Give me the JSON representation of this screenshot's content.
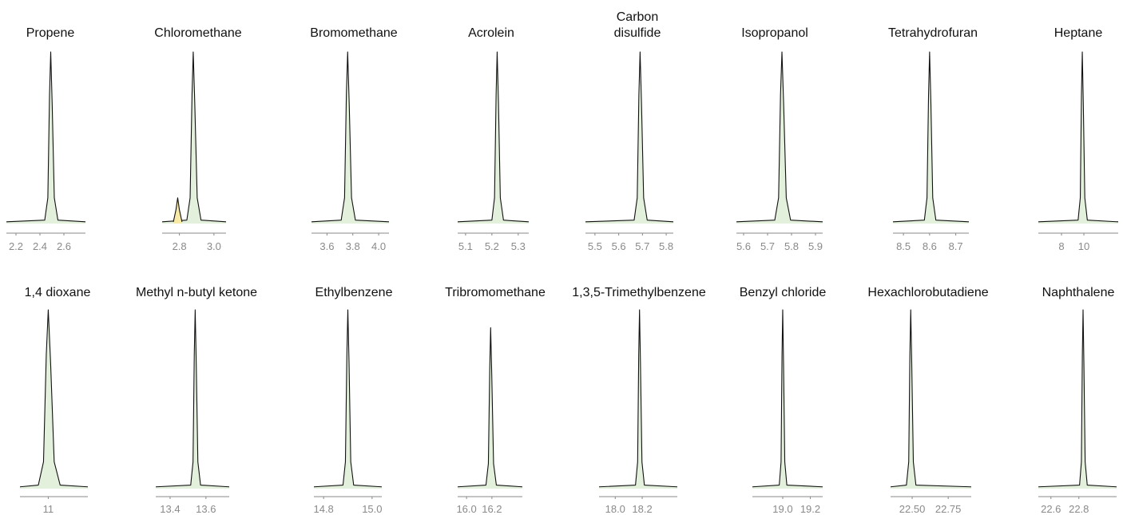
{
  "chart_data": [
    {
      "type": "area",
      "title": "Propene",
      "color": "#e3f1dc",
      "xlim": [
        2.12,
        2.78
      ],
      "xticks": [
        2.2,
        2.4,
        2.6
      ],
      "ylim": [
        0,
        100
      ],
      "x": [
        2.12,
        2.44,
        2.466,
        2.48,
        2.49,
        2.502,
        2.52,
        2.55,
        2.78
      ],
      "values": [
        1,
        2,
        15,
        75,
        100,
        70,
        15,
        2,
        1
      ]
    },
    {
      "type": "area",
      "title": "Chloromethane",
      "color": "#e3f1dc",
      "xlim": [
        2.7,
        3.07
      ],
      "xticks": [
        2.8,
        {
          "value": 3.0,
          "label": "3.0"
        }
      ],
      "ylim": [
        0,
        100
      ],
      "x": [
        2.7,
        2.843,
        2.862,
        2.873,
        2.88,
        2.889,
        2.903,
        2.925,
        3.07
      ],
      "values": [
        1,
        2,
        15,
        75,
        100,
        70,
        15,
        2,
        1
      ],
      "extra": {
        "color": "#f6eaa6",
        "x": [
          2.765,
          2.78,
          2.79,
          2.8,
          2.815
        ],
        "values": [
          1,
          8,
          15,
          8,
          1
        ]
      }
    },
    {
      "type": "area",
      "title": "Bromomethane",
      "color": "#e3f1dc",
      "xlim": [
        3.48,
        4.08
      ],
      "xticks": [
        3.6,
        3.8,
        {
          "value": 4.0,
          "label": "4.0"
        }
      ],
      "ylim": [
        0,
        100
      ],
      "x": [
        3.48,
        3.71,
        3.736,
        3.75,
        3.76,
        3.772,
        3.79,
        3.82,
        4.08
      ],
      "values": [
        1,
        2,
        15,
        75,
        100,
        70,
        15,
        2,
        1
      ]
    },
    {
      "type": "area",
      "title": "Acrolein",
      "color": "#e3f1dc",
      "xlim": [
        5.07,
        5.34
      ],
      "xticks": [
        5.1,
        5.2,
        5.3
      ],
      "ylim": [
        0,
        100
      ],
      "x": [
        5.07,
        5.2,
        5.21,
        5.216,
        5.22,
        5.225,
        5.232,
        5.244,
        5.34
      ],
      "values": [
        1,
        2,
        15,
        75,
        100,
        70,
        15,
        2,
        1
      ]
    },
    {
      "type": "area",
      "title": "Carbon disulfide",
      "color": "#e3f1dc",
      "xlim": [
        5.46,
        5.83
      ],
      "xticks": [
        5.5,
        5.6,
        5.7,
        5.8
      ],
      "ylim": [
        0,
        100
      ],
      "x": [
        5.46,
        5.665,
        5.678,
        5.685,
        5.69,
        5.696,
        5.705,
        5.72,
        5.83
      ],
      "values": [
        1,
        2,
        15,
        75,
        100,
        70,
        15,
        2,
        1
      ]
    },
    {
      "type": "area",
      "title": "Isopropanol",
      "color": "#e3f1dc",
      "xlim": [
        5.57,
        5.93
      ],
      "xticks": [
        5.6,
        5.7,
        5.8,
        5.9
      ],
      "ylim": [
        0,
        100
      ],
      "x": [
        5.57,
        5.73,
        5.746,
        5.754,
        5.76,
        5.767,
        5.778,
        5.796,
        5.93
      ],
      "values": [
        1,
        2,
        15,
        75,
        100,
        70,
        15,
        2,
        1
      ]
    },
    {
      "type": "area",
      "title": "Tetrahydrofuran",
      "color": "#e3f1dc",
      "xlim": [
        8.46,
        8.75
      ],
      "xticks": [
        8.5,
        8.6,
        8.7
      ],
      "ylim": [
        0,
        100
      ],
      "x": [
        8.46,
        8.58,
        8.59,
        8.596,
        8.6,
        8.605,
        8.612,
        8.624,
        8.75
      ],
      "values": [
        1,
        2,
        15,
        75,
        100,
        70,
        15,
        2,
        1
      ]
    },
    {
      "type": "area",
      "title": "Heptane",
      "color": "#e3f1dc",
      "xlim": [
        5.93,
        13.07
      ],
      "xticks": [
        8,
        10
      ],
      "ylim": [
        0,
        100
      ],
      "x": [
        5.93,
        9.485,
        9.68,
        9.785,
        9.86,
        9.95,
        10.085,
        10.31,
        13.07
      ],
      "values": [
        1,
        2,
        15,
        75,
        100,
        70,
        15,
        2,
        1
      ]
    },
    {
      "type": "area",
      "title": "1,4 dioxane",
      "color": "#e3f1dc",
      "xlim": [
        10.5,
        11.7
      ],
      "xticks": [
        11
      ],
      "ylim": [
        0,
        100
      ],
      "x": [
        10.5,
        10.825,
        10.916,
        10.965,
        11.0,
        11.042,
        11.105,
        11.21,
        11.7
      ],
      "values": [
        1,
        2,
        15,
        75,
        100,
        70,
        15,
        2,
        1
      ]
    },
    {
      "type": "area",
      "title": "Methyl n-butyl ketone",
      "color": "#e3f1dc",
      "xlim": [
        13.32,
        13.73
      ],
      "xticks": [
        13.4,
        13.6
      ],
      "ylim": [
        0,
        100
      ],
      "x": [
        13.32,
        13.515,
        13.528,
        13.535,
        13.54,
        13.546,
        13.555,
        13.57,
        13.73
      ],
      "values": [
        1,
        2,
        15,
        75,
        100,
        70,
        15,
        2,
        1
      ]
    },
    {
      "type": "area",
      "title": "Ethylbenzene",
      "color": "#e3f1dc",
      "xlim": [
        14.76,
        15.04
      ],
      "xticks": [
        14.8,
        {
          "value": 15.0,
          "label": "15.0"
        }
      ],
      "ylim": [
        0,
        100
      ],
      "x": [
        14.76,
        14.88,
        14.89,
        14.896,
        14.9,
        14.905,
        14.912,
        14.924,
        15.04
      ],
      "values": [
        1,
        2,
        15,
        75,
        100,
        70,
        15,
        2,
        1
      ]
    },
    {
      "type": "area",
      "title": "Tribromomethane",
      "color": "#e3f1dc",
      "xlim": [
        15.93,
        16.44
      ],
      "xticks": [
        {
          "value": 16.0,
          "label": "16.0"
        },
        16.2
      ],
      "ylim": [
        0,
        100
      ],
      "x": [
        15.93,
        16.153,
        16.172,
        16.183,
        16.19,
        16.199,
        16.213,
        16.235,
        16.44
      ],
      "values": [
        1,
        2,
        14,
        68,
        90,
        63,
        14,
        2,
        1
      ]
    },
    {
      "type": "area",
      "title": "1,3,5-Trimethylbenzene",
      "color": "#e3f1dc",
      "xlim": [
        17.88,
        18.46
      ],
      "xticks": [
        {
          "value": 18.0,
          "label": "18.0"
        },
        18.2
      ],
      "ylim": [
        0,
        100
      ],
      "x": [
        17.88,
        18.15,
        18.166,
        18.174,
        18.18,
        18.187,
        18.198,
        18.216,
        18.46
      ],
      "values": [
        1,
        2,
        15,
        75,
        100,
        70,
        15,
        2,
        1
      ]
    },
    {
      "type": "area",
      "title": "Benzyl chloride",
      "color": "#e3f1dc",
      "xlim": [
        18.78,
        19.29
      ],
      "xticks": [
        {
          "value": 19.0,
          "label": "19.0"
        },
        19.2
      ],
      "ylim": [
        0,
        100
      ],
      "x": [
        18.78,
        18.975,
        18.988,
        18.995,
        19.0,
        19.006,
        19.015,
        19.03,
        19.29
      ],
      "values": [
        1,
        2,
        15,
        75,
        100,
        70,
        15,
        2,
        1
      ]
    },
    {
      "type": "area",
      "title": "Hexachlorobutadiene",
      "color": "#e3f1dc",
      "xlim": [
        22.35,
        22.91
      ],
      "xticks": [
        {
          "value": 22.5,
          "label": "22.50"
        },
        22.75
      ],
      "ylim": [
        0,
        100
      ],
      "x": [
        22.35,
        22.46,
        22.476,
        22.484,
        22.49,
        22.497,
        22.508,
        22.526,
        22.91
      ],
      "values": [
        1,
        2,
        15,
        75,
        100,
        70,
        15,
        2,
        1
      ]
    },
    {
      "type": "area",
      "title": "Naphthalene",
      "color": "#e3f1dc",
      "xlim": [
        22.51,
        23.07
      ],
      "xticks": [
        22.6,
        22.8
      ],
      "ylim": [
        0,
        100
      ],
      "x": [
        22.51,
        22.805,
        22.818,
        22.825,
        22.83,
        22.836,
        22.845,
        22.86,
        23.07
      ],
      "values": [
        1,
        2,
        15,
        75,
        100,
        70,
        15,
        2,
        1
      ]
    }
  ]
}
